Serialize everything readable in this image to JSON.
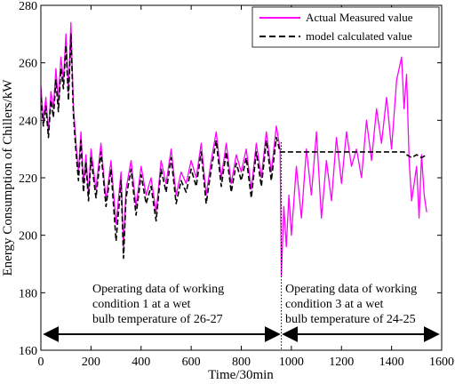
{
  "chart_data": {
    "type": "line",
    "title": "",
    "xlabel": "Time/30min",
    "ylabel": "Energy Consumption of Chillers/kW",
    "xlim": [
      0,
      1600
    ],
    "ylim": [
      160,
      280
    ],
    "xticks": [
      0,
      200,
      400,
      600,
      800,
      1000,
      1200,
      1400,
      1600
    ],
    "yticks": [
      160,
      180,
      200,
      220,
      240,
      260,
      280
    ],
    "grid": false,
    "legend_position": "top-right",
    "series": [
      {
        "name": "Actual Measured value",
        "color": "#ff00ff",
        "style": "solid",
        "x": [
          0,
          10,
          20,
          30,
          40,
          50,
          60,
          70,
          80,
          90,
          100,
          110,
          120,
          130,
          140,
          150,
          160,
          170,
          180,
          190,
          200,
          220,
          240,
          260,
          280,
          300,
          320,
          330,
          340,
          360,
          380,
          400,
          420,
          440,
          460,
          480,
          500,
          520,
          540,
          560,
          580,
          600,
          620,
          640,
          660,
          680,
          700,
          720,
          740,
          760,
          780,
          800,
          820,
          840,
          860,
          880,
          900,
          920,
          940,
          955,
          960,
          970,
          980,
          990,
          1000,
          1020,
          1040,
          1060,
          1080,
          1100,
          1120,
          1140,
          1160,
          1180,
          1200,
          1220,
          1240,
          1260,
          1280,
          1300,
          1320,
          1340,
          1360,
          1380,
          1400,
          1420,
          1440,
          1450,
          1460,
          1470,
          1480,
          1500,
          1510,
          1520,
          1530,
          1540
        ],
        "y": [
          252,
          240,
          248,
          236,
          250,
          244,
          258,
          246,
          262,
          254,
          270,
          250,
          274,
          245,
          232,
          222,
          236,
          218,
          228,
          214,
          230,
          216,
          232,
          212,
          226,
          204,
          222,
          196,
          216,
          226,
          210,
          224,
          214,
          220,
          208,
          226,
          218,
          230,
          214,
          222,
          218,
          226,
          220,
          232,
          214,
          226,
          236,
          220,
          232,
          218,
          228,
          222,
          230,
          216,
          232,
          220,
          236,
          222,
          238,
          230,
          186,
          210,
          196,
          214,
          200,
          224,
          206,
          230,
          214,
          236,
          206,
          226,
          212,
          234,
          218,
          236,
          224,
          230,
          220,
          240,
          226,
          244,
          232,
          248,
          230,
          254,
          262,
          244,
          256,
          226,
          212,
          224,
          206,
          228,
          214,
          208
        ]
      },
      {
        "name": "model calculated value",
        "color": "#000000",
        "style": "dashed",
        "x": [
          0,
          10,
          20,
          30,
          40,
          50,
          60,
          70,
          80,
          90,
          100,
          110,
          120,
          130,
          140,
          150,
          160,
          170,
          180,
          190,
          200,
          220,
          240,
          260,
          280,
          300,
          320,
          330,
          340,
          360,
          380,
          400,
          420,
          440,
          460,
          480,
          500,
          520,
          540,
          560,
          580,
          600,
          620,
          640,
          660,
          680,
          700,
          720,
          740,
          760,
          780,
          800,
          820,
          840,
          860,
          880,
          900,
          920,
          940,
          955,
          960,
          1000,
          1100,
          1200,
          1300,
          1400,
          1450,
          1460,
          1480,
          1500,
          1520,
          1540
        ],
        "y": [
          248,
          238,
          245,
          234,
          247,
          241,
          254,
          243,
          258,
          251,
          266,
          247,
          270,
          242,
          229,
          219,
          233,
          215,
          225,
          212,
          227,
          213,
          229,
          210,
          223,
          198,
          219,
          192,
          213,
          223,
          207,
          221,
          211,
          217,
          205,
          223,
          215,
          227,
          211,
          219,
          215,
          223,
          217,
          229,
          211,
          223,
          233,
          217,
          229,
          215,
          225,
          219,
          227,
          213,
          229,
          217,
          233,
          219,
          234,
          229,
          229,
          229,
          229,
          229,
          229,
          229,
          229,
          228,
          227,
          228,
          227,
          228
        ]
      }
    ],
    "annotations": [
      "Operating data of working condition 1 at a wet bulb temperature of 26-27",
      "Operating data of working condition 3 at a wet bulb temperature of 24-25"
    ]
  }
}
